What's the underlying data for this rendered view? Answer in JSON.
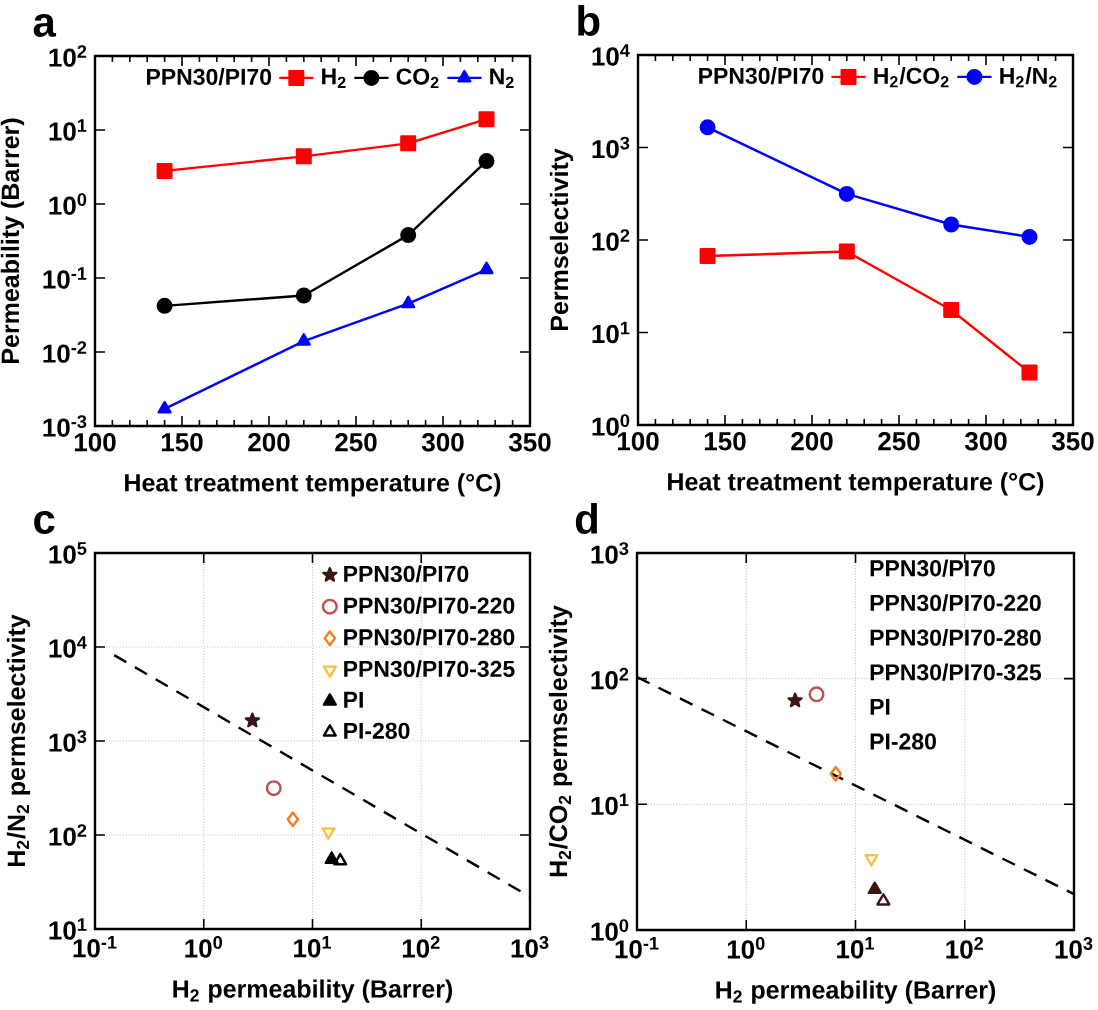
{
  "chart_data": [
    {
      "type": "line",
      "title": "a",
      "xlabel": "Heat treatment temperature (°C)",
      "ylabel": "Permeability (Barrer)",
      "log": "y",
      "legend": "top right",
      "legend_title": "PPN30/PI70",
      "x": [
        140,
        220,
        280,
        325
      ],
      "xlim": [
        100,
        350
      ],
      "ylim": [
        0.001,
        100
      ],
      "xticks": [
        100,
        150,
        200,
        250,
        300,
        350
      ],
      "yticks": [
        {
          "value": 0.001,
          "label": "10$^{-3}$"
        },
        {
          "value": 0.01,
          "label": "10$^{-2}$"
        },
        {
          "value": 0.1,
          "label": "10$^{-1}$"
        },
        {
          "value": 1,
          "label": "10$^{0}$"
        },
        {
          "value": 10,
          "label": "10$^{1}$"
        },
        {
          "value": 100,
          "label": "10$^{2}$"
        }
      ],
      "series": [
        {
          "name": "H$_{2}$",
          "color": "#ff0000",
          "marker": "square",
          "values": [
            2.8,
            4.4,
            6.6,
            14
          ]
        },
        {
          "name": "CO$_{2}$",
          "color": "#000000",
          "marker": "circle",
          "values": [
            0.042,
            0.058,
            0.38,
            3.8
          ]
        },
        {
          "name": "N$_{2}$",
          "color": "#0000ff",
          "marker": "triangle",
          "values": [
            0.0017,
            0.014,
            0.045,
            0.13
          ]
        }
      ]
    },
    {
      "type": "line",
      "title": "b",
      "xlabel": "Heat treatment temperature (°C)",
      "ylabel": "Permselectivity",
      "log": "y",
      "legend": "top right",
      "legend_title": "PPN30/PI70",
      "x": [
        140,
        220,
        280,
        325
      ],
      "xlim": [
        100,
        350
      ],
      "ylim": [
        1,
        10000
      ],
      "xticks": [
        100,
        150,
        200,
        250,
        300,
        350
      ],
      "yticks": [
        {
          "value": 1,
          "label": "10$^{0}$"
        },
        {
          "value": 10,
          "label": "10$^{1}$"
        },
        {
          "value": 100,
          "label": "10$^{2}$"
        },
        {
          "value": 1000,
          "label": "10$^{3}$"
        },
        {
          "value": 10000,
          "label": "10$^{4}$"
        }
      ],
      "series": [
        {
          "name": "H$_{2}$/CO$_{2}$",
          "color": "#ff0000",
          "marker": "square",
          "values": [
            67,
            75,
            17.5,
            3.7
          ]
        },
        {
          "name": "H$_{2}$/N$_{2}$",
          "color": "#0000ff",
          "marker": "circle",
          "values": [
            1650,
            315,
            147,
            108
          ]
        }
      ]
    },
    {
      "type": "scatter",
      "title": "c",
      "xlabel": "H$_{2}$ permeability (Barrer)",
      "ylabel": "H$_{2}$/N$_{2}$ permselectivity",
      "log": "xy",
      "grid": true,
      "legend": "top right",
      "xlim": [
        0.1,
        1000
      ],
      "ylim": [
        10,
        100000
      ],
      "xticks": [
        {
          "value": 0.1,
          "label": "10$^{-1}$"
        },
        {
          "value": 1,
          "label": "10$^{0}$"
        },
        {
          "value": 10,
          "label": "10$^{1}$"
        },
        {
          "value": 100,
          "label": "10$^{2}$"
        },
        {
          "value": 1000,
          "label": "10$^{3}$"
        }
      ],
      "yticks": [
        {
          "value": 10,
          "label": "10$^{1}$"
        },
        {
          "value": 100,
          "label": "10$^{2}$"
        },
        {
          "value": 1000,
          "label": "10$^{3}$"
        },
        {
          "value": 10000,
          "label": "10$^{4}$"
        },
        {
          "value": 100000,
          "label": "10$^{5}$"
        }
      ],
      "series": [
        {
          "name": "PPN30/PI70",
          "color": "#3b1414",
          "marker": "star",
          "x": [
            2.8
          ],
          "values": [
            1650
          ]
        },
        {
          "name": "PPN30/PI70-220",
          "color": "#c0504d",
          "marker": "circle-open",
          "x": [
            4.4
          ],
          "values": [
            315
          ]
        },
        {
          "name": "PPN30/PI70-280",
          "color": "#f07f22",
          "marker": "diamond-open",
          "x": [
            6.6
          ],
          "values": [
            147
          ]
        },
        {
          "name": "PPN30/PI70-325",
          "color": "#f5c242",
          "marker": "triangle-down-open",
          "x": [
            14
          ],
          "values": [
            108
          ]
        },
        {
          "name": "PI",
          "color": "#000000",
          "marker": "triangle",
          "x": [
            15
          ],
          "values": [
            55
          ]
        },
        {
          "name": "PI-280",
          "color": "#000000",
          "marker": "triangle-open",
          "x": [
            18
          ],
          "values": [
            53
          ]
        },
        {
          "type": "line",
          "color": "#000000",
          "marker": "none",
          "line_style": "dashed",
          "x": [
            0.15,
            1000
          ],
          "values": [
            8200,
            22
          ]
        }
      ]
    },
    {
      "type": "scatter",
      "title": "d",
      "xlabel": "H$_{2}$ permeability (Barrer)",
      "ylabel": "H$_{2}$/CO$_{2}$ permselectivity",
      "log": "xy",
      "grid": true,
      "xlim": [
        0.1,
        1000
      ],
      "ylim": [
        1,
        1000
      ],
      "xticks": [
        {
          "value": 0.1,
          "label": "10$^{-1}$"
        },
        {
          "value": 1,
          "label": "10$^{0}$"
        },
        {
          "value": 10,
          "label": "10$^{1}$"
        },
        {
          "value": 100,
          "label": "10$^{2}$"
        },
        {
          "value": 1000,
          "label": "10$^{3}$"
        }
      ],
      "yticks": [
        {
          "value": 1,
          "label": "10$^{0}$"
        },
        {
          "value": 10,
          "label": "10$^{1}$"
        },
        {
          "value": 100,
          "label": "10$^{2}$"
        },
        {
          "value": 1000,
          "label": "10$^{3}$"
        }
      ],
      "annotations": [
        "PPN30/PI70",
        "PPN30/PI70-220",
        "PPN30/PI70-280",
        "PPN30/PI70-325",
        "PI",
        "PI-280"
      ],
      "series": [
        {
          "color": "#3b1414",
          "marker": "star",
          "x": [
            2.8
          ],
          "values": [
            67
          ]
        },
        {
          "color": "#c0504d",
          "marker": "circle-open",
          "x": [
            4.4
          ],
          "values": [
            75
          ]
        },
        {
          "color": "#f07f22",
          "marker": "diamond-open",
          "x": [
            6.6
          ],
          "values": [
            17.5
          ]
        },
        {
          "color": "#f5c242",
          "marker": "triangle-down-open",
          "x": [
            14
          ],
          "values": [
            3.7
          ]
        },
        {
          "color": "#3b1414",
          "marker": "triangle",
          "x": [
            15
          ],
          "values": [
            2.1
          ]
        },
        {
          "color": "#3b1414",
          "marker": "triangle-open",
          "x": [
            18
          ],
          "values": [
            1.7
          ]
        },
        {
          "type": "line",
          "color": "#000000",
          "marker": "none",
          "line_style": "dashed",
          "x": [
            0.1,
            1000
          ],
          "values": [
            103,
            1.93
          ]
        }
      ]
    }
  ]
}
